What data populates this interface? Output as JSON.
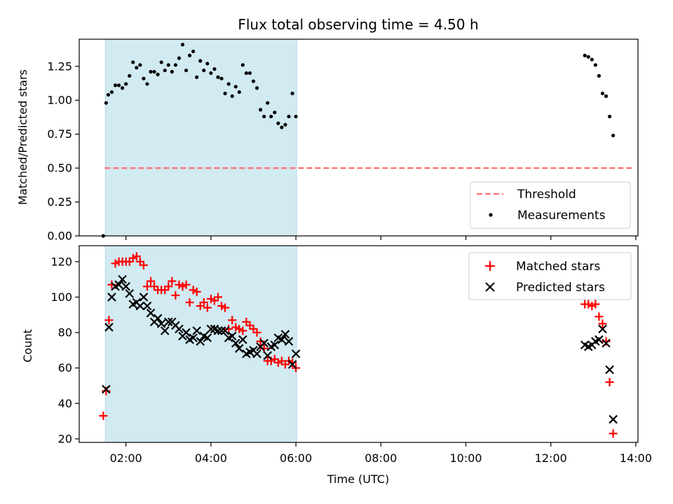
{
  "chart_data": [
    {
      "type": "scatter",
      "title": "Flux total observing time = 4.50 h",
      "xlabel": "",
      "ylabel": "Matched/Predicted stars",
      "ylim": [
        0,
        1.45
      ],
      "yticks": [
        "0.00",
        "0.25",
        "0.50",
        "0.75",
        "1.00",
        "1.25"
      ],
      "ytick_values": [
        0,
        0.25,
        0.5,
        0.75,
        1.0,
        1.25
      ],
      "xlim_hours": [
        0.9,
        14.05
      ],
      "xticks_shown": false,
      "grid": false,
      "legend_position": "lower-right",
      "shaded_interval": {
        "start": "01:31",
        "end": "06:01",
        "color": "#add8e6"
      },
      "threshold": {
        "name": "Threshold",
        "value": 0.5,
        "x_start": "01:30",
        "x_end": "13:55",
        "color": "#ff6f6f"
      },
      "series": [
        {
          "name": "Measurements",
          "color": "#000000",
          "marker": "dot",
          "points": [
            [
              "01:28",
              0.0
            ],
            [
              "01:32",
              0.98
            ],
            [
              "01:35",
              1.04
            ],
            [
              "01:40",
              1.06
            ],
            [
              "01:45",
              1.11
            ],
            [
              "01:50",
              1.11
            ],
            [
              "01:55",
              1.09
            ],
            [
              "02:00",
              1.12
            ],
            [
              "02:05",
              1.18
            ],
            [
              "02:10",
              1.28
            ],
            [
              "02:15",
              1.24
            ],
            [
              "02:20",
              1.26
            ],
            [
              "02:25",
              1.16
            ],
            [
              "02:30",
              1.12
            ],
            [
              "02:35",
              1.21
            ],
            [
              "02:40",
              1.21
            ],
            [
              "02:45",
              1.19
            ],
            [
              "02:50",
              1.28
            ],
            [
              "02:55",
              1.22
            ],
            [
              "03:00",
              1.26
            ],
            [
              "03:05",
              1.21
            ],
            [
              "03:10",
              1.26
            ],
            [
              "03:15",
              1.31
            ],
            [
              "03:20",
              1.41
            ],
            [
              "03:25",
              1.22
            ],
            [
              "03:30",
              1.33
            ],
            [
              "03:35",
              1.36
            ],
            [
              "03:40",
              1.17
            ],
            [
              "03:45",
              1.29
            ],
            [
              "03:50",
              1.22
            ],
            [
              "03:55",
              1.27
            ],
            [
              "04:00",
              1.2
            ],
            [
              "04:05",
              1.23
            ],
            [
              "04:10",
              1.17
            ],
            [
              "04:15",
              1.16
            ],
            [
              "04:20",
              1.05
            ],
            [
              "04:25",
              1.12
            ],
            [
              "04:30",
              1.03
            ],
            [
              "04:35",
              1.1
            ],
            [
              "04:40",
              1.06
            ],
            [
              "04:45",
              1.26
            ],
            [
              "04:50",
              1.2
            ],
            [
              "04:55",
              1.2
            ],
            [
              "05:00",
              1.14
            ],
            [
              "05:05",
              1.09
            ],
            [
              "05:10",
              0.93
            ],
            [
              "05:15",
              0.88
            ],
            [
              "05:20",
              0.98
            ],
            [
              "05:25",
              0.88
            ],
            [
              "05:30",
              0.91
            ],
            [
              "05:35",
              0.83
            ],
            [
              "05:40",
              0.8
            ],
            [
              "05:45",
              0.82
            ],
            [
              "05:50",
              0.88
            ],
            [
              "05:55",
              1.05
            ],
            [
              "06:00",
              0.88
            ],
            [
              "12:48",
              1.33
            ],
            [
              "12:53",
              1.32
            ],
            [
              "12:58",
              1.3
            ],
            [
              "13:03",
              1.26
            ],
            [
              "13:08",
              1.18
            ],
            [
              "13:13",
              1.05
            ],
            [
              "13:18",
              1.03
            ],
            [
              "13:23",
              0.88
            ],
            [
              "13:28",
              0.74
            ]
          ]
        }
      ]
    },
    {
      "type": "scatter",
      "title": "",
      "xlabel": "Time (UTC)",
      "ylabel": "Count",
      "ylim": [
        18,
        129
      ],
      "yticks": [
        "20",
        "40",
        "60",
        "80",
        "100",
        "120"
      ],
      "ytick_values": [
        20,
        40,
        60,
        80,
        100,
        120
      ],
      "xlim_hours": [
        0.9,
        14.05
      ],
      "xticks": [
        "02:00",
        "04:00",
        "06:00",
        "08:00",
        "10:00",
        "12:00",
        "14:00"
      ],
      "xtick_values_hours": [
        2,
        4,
        6,
        8,
        10,
        12,
        14
      ],
      "grid": false,
      "legend_position": "upper-right",
      "shaded_interval": {
        "start": "01:31",
        "end": "06:01",
        "color": "#add8e6"
      },
      "series": [
        {
          "name": "Matched stars",
          "color": "#ff0000",
          "marker": "plus",
          "points": [
            [
              "01:28",
              33
            ],
            [
              "01:32",
              47
            ],
            [
              "01:36",
              87
            ],
            [
              "01:40",
              107
            ],
            [
              "01:45",
              119
            ],
            [
              "01:50",
              120
            ],
            [
              "01:55",
              120
            ],
            [
              "02:00",
              120
            ],
            [
              "02:05",
              120
            ],
            [
              "02:10",
              122
            ],
            [
              "02:15",
              123
            ],
            [
              "02:20",
              120
            ],
            [
              "02:25",
              118
            ],
            [
              "02:30",
              106
            ],
            [
              "02:35",
              109
            ],
            [
              "02:40",
              106
            ],
            [
              "02:45",
              104
            ],
            [
              "02:50",
              104
            ],
            [
              "02:55",
              104
            ],
            [
              "03:00",
              106
            ],
            [
              "03:05",
              109
            ],
            [
              "03:10",
              101
            ],
            [
              "03:15",
              107
            ],
            [
              "03:20",
              106
            ],
            [
              "03:25",
              107
            ],
            [
              "03:30",
              97
            ],
            [
              "03:35",
              104
            ],
            [
              "03:40",
              103
            ],
            [
              "03:45",
              95
            ],
            [
              "03:50",
              97
            ],
            [
              "03:55",
              94
            ],
            [
              "04:00",
              99
            ],
            [
              "04:05",
              98
            ],
            [
              "04:10",
              100
            ],
            [
              "04:15",
              95
            ],
            [
              "04:20",
              94
            ],
            [
              "04:25",
              82
            ],
            [
              "04:30",
              87
            ],
            [
              "04:35",
              83
            ],
            [
              "04:40",
              82
            ],
            [
              "04:45",
              81
            ],
            [
              "04:50",
              86
            ],
            [
              "04:55",
              84
            ],
            [
              "05:00",
              82
            ],
            [
              "05:05",
              80
            ],
            [
              "05:10",
              75
            ],
            [
              "05:15",
              71
            ],
            [
              "05:20",
              64
            ],
            [
              "05:25",
              64
            ],
            [
              "05:30",
              65
            ],
            [
              "05:35",
              63
            ],
            [
              "05:40",
              64
            ],
            [
              "05:45",
              62
            ],
            [
              "05:50",
              64
            ],
            [
              "05:55",
              63
            ],
            [
              "06:00",
              60
            ],
            [
              "12:48",
              96
            ],
            [
              "12:53",
              96
            ],
            [
              "12:58",
              95
            ],
            [
              "13:03",
              96
            ],
            [
              "13:08",
              89
            ],
            [
              "13:13",
              85
            ],
            [
              "13:18",
              75
            ],
            [
              "13:23",
              52
            ],
            [
              "13:28",
              23
            ]
          ]
        },
        {
          "name": "Predicted stars",
          "color": "#000000",
          "marker": "x",
          "points": [
            [
              "01:32",
              48
            ],
            [
              "01:36",
              83
            ],
            [
              "01:40",
              100
            ],
            [
              "01:45",
              106
            ],
            [
              "01:50",
              107
            ],
            [
              "01:55",
              110
            ],
            [
              "02:00",
              106
            ],
            [
              "02:05",
              102
            ],
            [
              "02:10",
              96
            ],
            [
              "02:15",
              97
            ],
            [
              "02:20",
              95
            ],
            [
              "02:25",
              100
            ],
            [
              "02:30",
              95
            ],
            [
              "02:35",
              91
            ],
            [
              "02:40",
              86
            ],
            [
              "02:45",
              88
            ],
            [
              "02:50",
              85
            ],
            [
              "02:55",
              81
            ],
            [
              "03:00",
              86
            ],
            [
              "03:05",
              86
            ],
            [
              "03:10",
              84
            ],
            [
              "03:15",
              82
            ],
            [
              "03:20",
              78
            ],
            [
              "03:25",
              80
            ],
            [
              "03:30",
              76
            ],
            [
              "03:35",
              77
            ],
            [
              "03:40",
              81
            ],
            [
              "03:45",
              75
            ],
            [
              "03:50",
              78
            ],
            [
              "03:55",
              77
            ],
            [
              "04:00",
              82
            ],
            [
              "04:05",
              82
            ],
            [
              "04:10",
              81
            ],
            [
              "04:15",
              81
            ],
            [
              "04:20",
              81
            ],
            [
              "04:25",
              77
            ],
            [
              "04:30",
              78
            ],
            [
              "04:35",
              74
            ],
            [
              "04:40",
              71
            ],
            [
              "04:45",
              76
            ],
            [
              "04:50",
              68
            ],
            [
              "04:55",
              69
            ],
            [
              "05:00",
              70
            ],
            [
              "05:05",
              68
            ],
            [
              "05:10",
              72
            ],
            [
              "05:15",
              74
            ],
            [
              "05:20",
              67
            ],
            [
              "05:25",
              72
            ],
            [
              "05:30",
              73
            ],
            [
              "05:35",
              77
            ],
            [
              "05:40",
              76
            ],
            [
              "05:45",
              79
            ],
            [
              "05:50",
              75
            ],
            [
              "05:55",
              62
            ],
            [
              "06:00",
              68
            ],
            [
              "12:48",
              73
            ],
            [
              "12:53",
              72
            ],
            [
              "12:58",
              73
            ],
            [
              "13:03",
              75
            ],
            [
              "13:08",
              76
            ],
            [
              "13:13",
              82
            ],
            [
              "13:18",
              74
            ],
            [
              "13:23",
              59
            ],
            [
              "13:28",
              31
            ]
          ]
        }
      ]
    }
  ]
}
